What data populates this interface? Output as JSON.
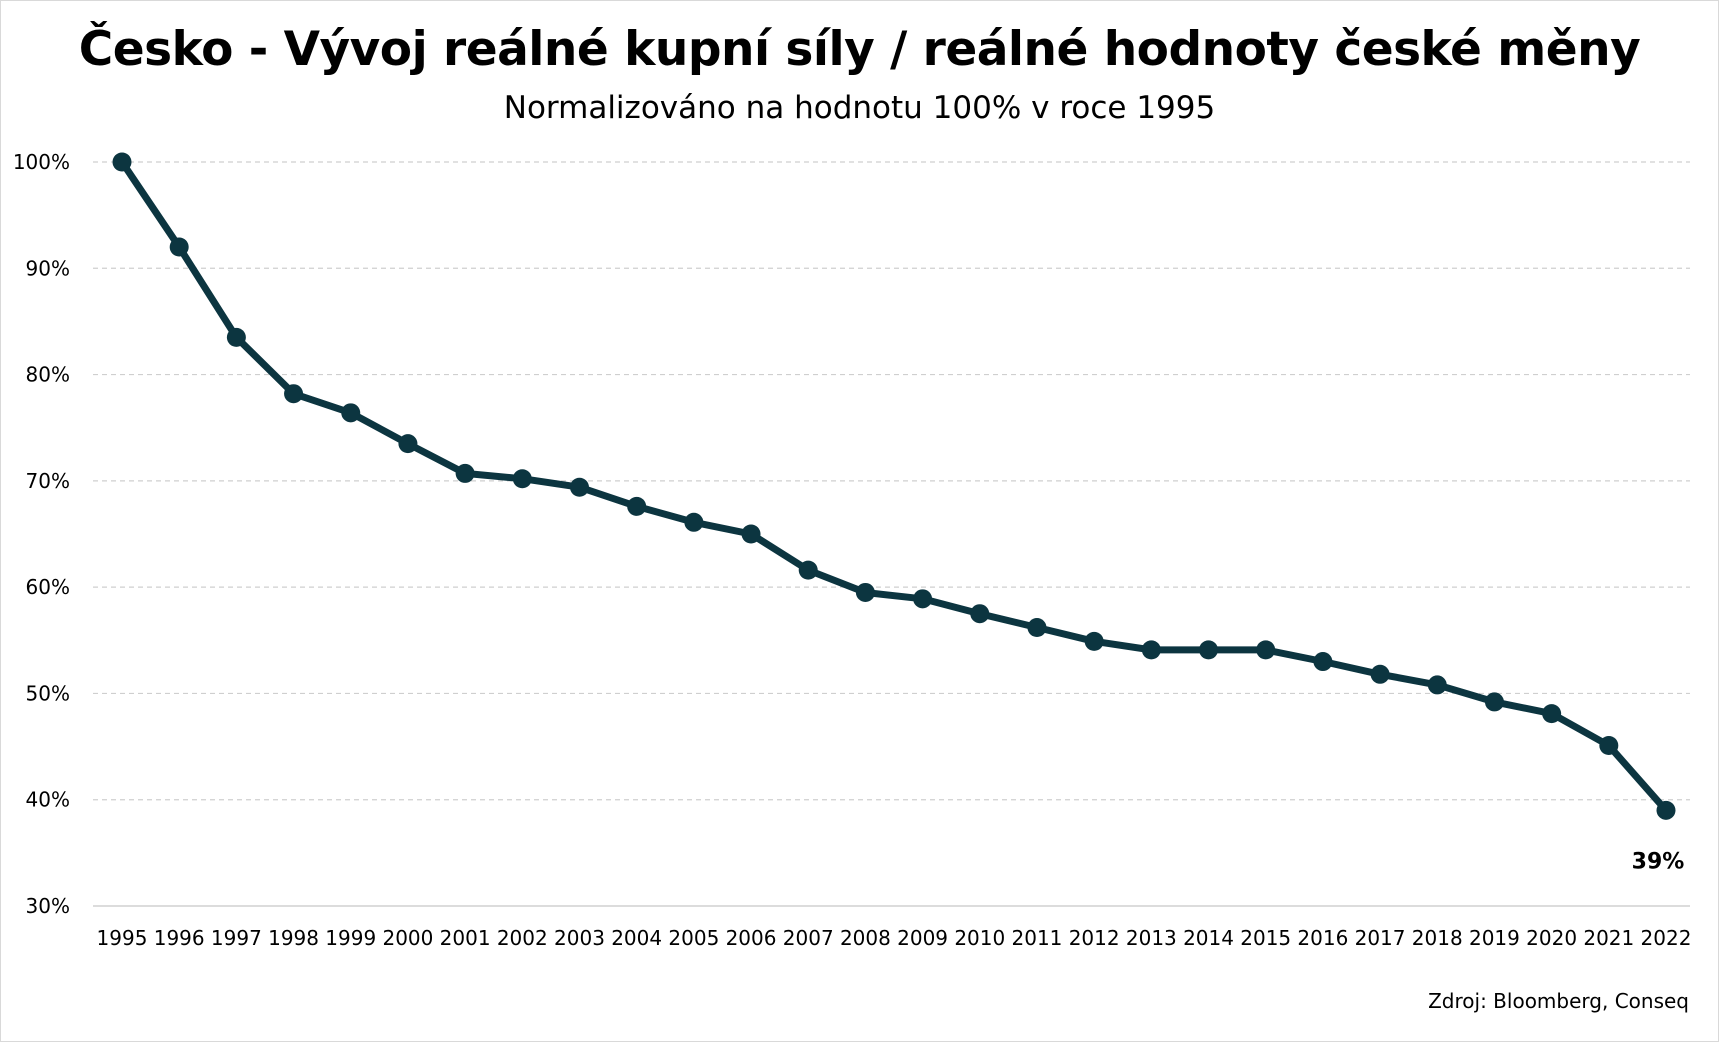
{
  "chart_data": {
    "type": "line",
    "title": "Česko - Vývoj reálné kupní síly / reálné hodnoty české měny",
    "subtitle": "Normalizováno na hodnotu 100% v roce 1995",
    "source": "Zdroj: Bloomberg, Conseq",
    "x": [
      "1995",
      "1996",
      "1997",
      "1998",
      "1999",
      "2000",
      "2001",
      "2002",
      "2003",
      "2004",
      "2005",
      "2006",
      "2007",
      "2008",
      "2009",
      "2010",
      "2011",
      "2012",
      "2013",
      "2014",
      "2015",
      "2016",
      "2017",
      "2018",
      "2019",
      "2020",
      "2021",
      "2022"
    ],
    "series": [
      {
        "values": [
          100,
          92,
          83.5,
          78.2,
          76.4,
          73.5,
          70.7,
          70.2,
          69.4,
          67.6,
          66.1,
          65.0,
          61.6,
          59.5,
          58.9,
          57.5,
          56.2,
          54.9,
          54.1,
          54.1,
          54.1,
          53.0,
          51.8,
          50.8,
          49.2,
          48.1,
          45.1,
          39.0
        ],
        "color": "#0c3540"
      }
    ],
    "ylim": [
      30,
      100
    ],
    "yticks": [
      100,
      90,
      80,
      70,
      60,
      50,
      40,
      30
    ],
    "ytick_labels": [
      "100%",
      "90%",
      "80%",
      "70%",
      "60%",
      "50%",
      "40%",
      "30%"
    ],
    "grid": true,
    "data_labels": [
      {
        "index": 27,
        "text": "39%"
      }
    ]
  }
}
